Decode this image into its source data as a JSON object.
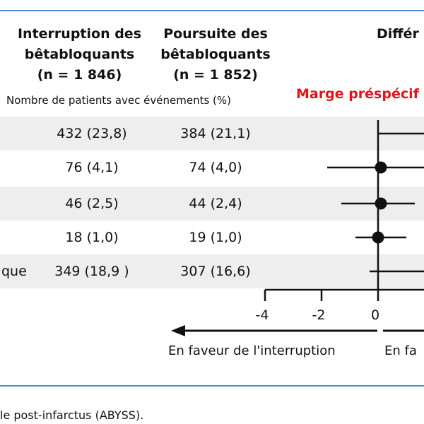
{
  "colors": {
    "rule": "#4a90d9",
    "stripe": "#eeeeee",
    "accent_red": "#e0141b",
    "ink": "#111111"
  },
  "header": {
    "interruption": [
      "Interruption des",
      "bêtabloquants",
      "(n = 1 846)"
    ],
    "poursuite": [
      "Poursuite des",
      "bêtabloquants",
      "(n = 1 852)"
    ],
    "difference": "Différ",
    "subheader": "Nombre de patients avec événements (%)",
    "margin": "Marge préspécif"
  },
  "rows": [
    {
      "label": "",
      "interruption": "432 (23,8)",
      "poursuite": "384 (21,1)",
      "shaded": true
    },
    {
      "label": "",
      "interruption": "76 (4,1)",
      "poursuite": "74 (4,0)",
      "shaded": false
    },
    {
      "label": "",
      "interruption": "46 (2,5)",
      "poursuite": "44 (2,4)",
      "shaded": true
    },
    {
      "label": "",
      "interruption": "18 (1,0)",
      "poursuite": "19 (1,0)",
      "shaded": false
    },
    {
      "label": "que",
      "interruption": "349 (18,9  )",
      "poursuite": "307 (16,6)",
      "shaded": true
    }
  ],
  "favor": {
    "left": "En faveur de l'interruption",
    "right": "En fa"
  },
  "caption": "le post-infarctus (ABYSS).",
  "chart_data": {
    "type": "forest",
    "xlim": [
      -4,
      2.5
    ],
    "ticks": [
      -4,
      -2,
      0
    ],
    "reference_line": 0,
    "points": [
      {
        "estimate": null,
        "low": 0.0,
        "high": null,
        "marker": false
      },
      {
        "estimate": 0.1,
        "low": -1.8,
        "high": 1.8,
        "marker": true
      },
      {
        "estimate": 0.1,
        "low": -1.3,
        "high": 1.3,
        "marker": true
      },
      {
        "estimate": 0.0,
        "low": -0.8,
        "high": 1.0,
        "marker": true
      },
      {
        "estimate": null,
        "low": -0.3,
        "high": null,
        "marker": false
      }
    ]
  }
}
